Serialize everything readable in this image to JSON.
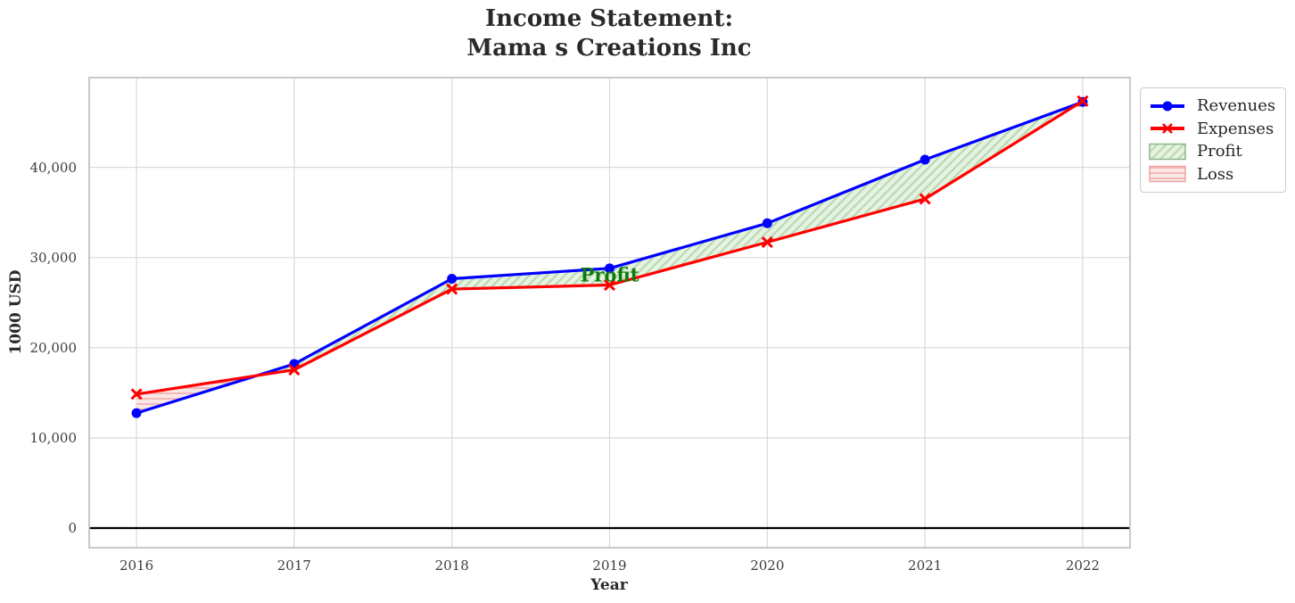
{
  "title": {
    "line1": "Income Statement:",
    "line2": "Mama s Creations Inc"
  },
  "chart_data": {
    "type": "line",
    "x": [
      2016,
      2017,
      2018,
      2019,
      2020,
      2021,
      2022
    ],
    "x_tick_labels": [
      "2016",
      "2017",
      "2018",
      "2019",
      "2020",
      "2021",
      "2022"
    ],
    "y_tick_values": [
      0,
      10000,
      20000,
      30000,
      40000
    ],
    "y_tick_labels": [
      "0",
      "10,000",
      "20,000",
      "30,000",
      "40,000"
    ],
    "xlabel": "Year",
    "ylabel": "1000 USD",
    "xlim": [
      2015.7,
      2022.3
    ],
    "ylim": [
      -2176,
      49950
    ],
    "grid": true,
    "zero_line": true,
    "series": [
      {
        "name": "Revenues",
        "color": "#0000ff",
        "marker": "circle",
        "values": [
          12750,
          18200,
          27650,
          28800,
          33800,
          40850,
          47250
        ]
      },
      {
        "name": "Expenses",
        "color": "#ff0000",
        "marker": "x",
        "values": [
          14850,
          17550,
          26500,
          26950,
          31700,
          36500,
          47350
        ]
      }
    ],
    "fills": {
      "profit": {
        "label": "Profit",
        "base": "#e6f3e2",
        "hatch": "#b9d9b1",
        "edge": "#86b286",
        "hatch_style": "diagonal"
      },
      "loss": {
        "label": "Loss",
        "base": "#fbe7e7",
        "hatch": "#f3b9b9",
        "edge": "#ef9f9f",
        "hatch_style": "horizontal"
      }
    },
    "annotations": [
      {
        "text": "Profit",
        "x": 2019,
        "y": 27900,
        "color": "#0c7c0c"
      }
    ],
    "legend": {
      "position": "outside-upper-right",
      "items": [
        {
          "label": "Revenues",
          "type": "line-circle"
        },
        {
          "label": "Expenses",
          "type": "line-x"
        },
        {
          "label": "Profit",
          "type": "hatch-diagonal"
        },
        {
          "label": "Loss",
          "type": "hatch-horizontal"
        }
      ]
    },
    "colors": {
      "grid": "#d9d9d9",
      "spine": "#c3c3c3",
      "zero_line": "#000000"
    }
  }
}
